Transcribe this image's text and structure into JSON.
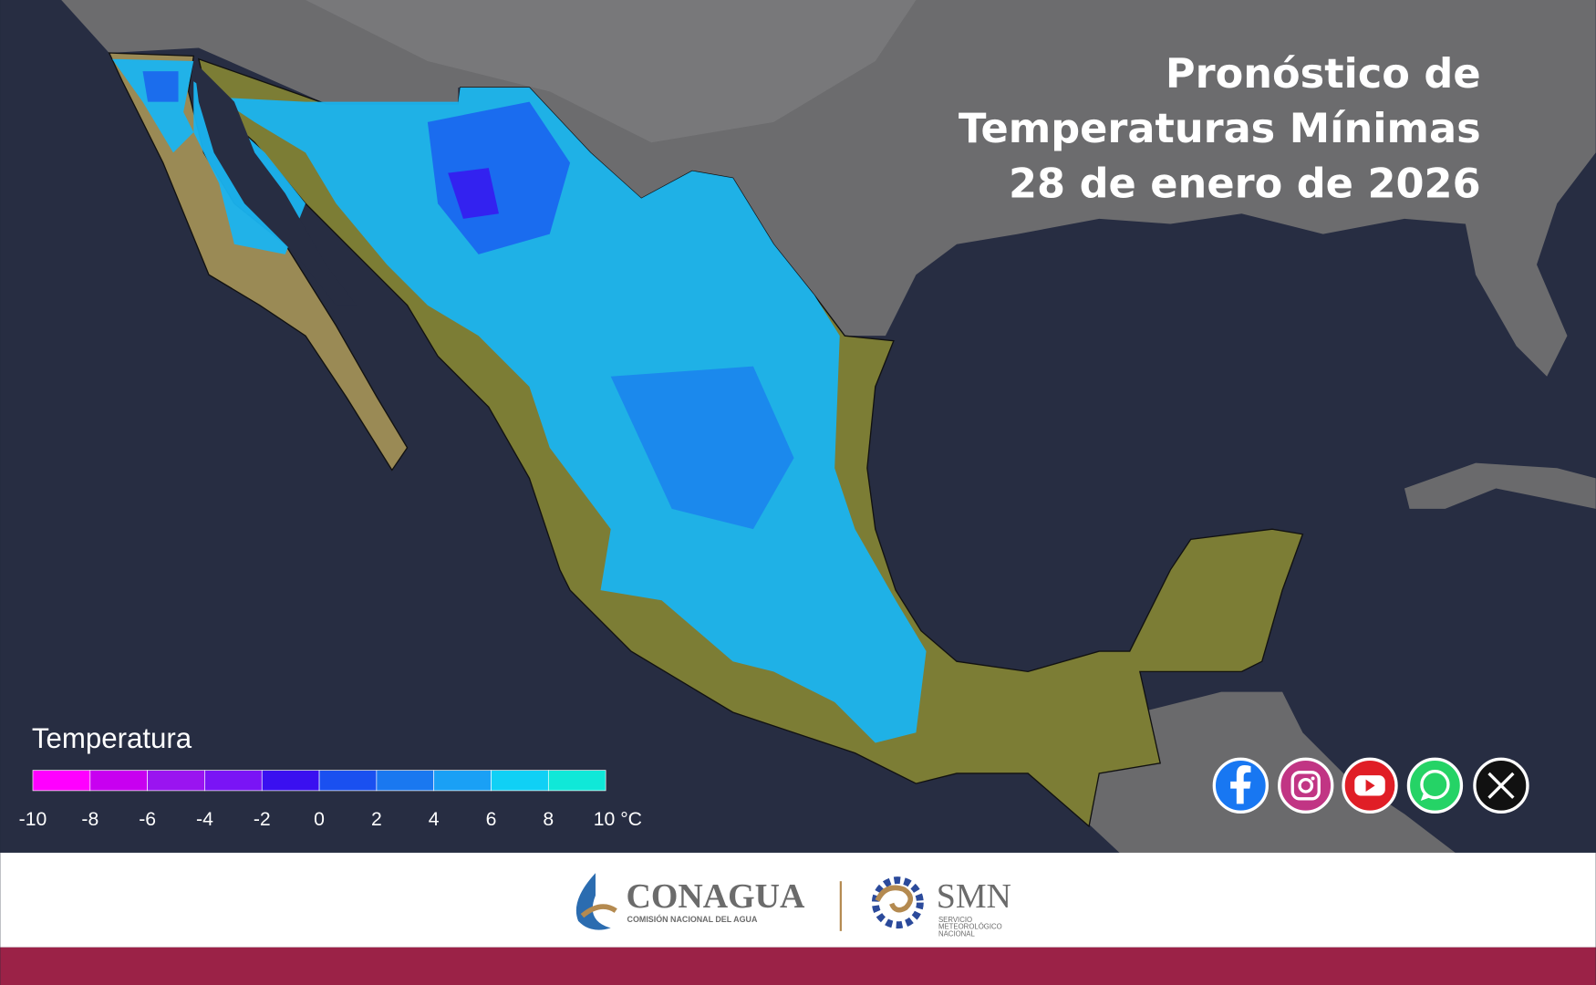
{
  "header": {
    "title_lines": [
      "Pronóstico de",
      "Temperaturas Mínimas",
      "28 de enero de 2026"
    ]
  },
  "legend": {
    "title": "Temperatura",
    "ticks": [
      -10,
      -8,
      -6,
      -4,
      -2,
      0,
      2,
      4,
      6,
      8,
      {
        "value": 10,
        "label": "10 °C"
      }
    ],
    "colors": [
      "#ff00ff",
      "#c800f0",
      "#9a14f0",
      "#7a14f5",
      "#3a10f0",
      "#1a50f0",
      "#1a78f0",
      "#1aa0f5",
      "#10d0f5",
      "#10e8d8"
    ]
  },
  "footer": {
    "conagua": {
      "name": "CONAGUA",
      "subtitle": "COMISIÓN NACIONAL DEL AGUA"
    },
    "smn": {
      "name": "SMN",
      "subtitle_lines": [
        "SERVICIO",
        "METEOROLÓGICO",
        "NACIONAL"
      ]
    }
  }
}
